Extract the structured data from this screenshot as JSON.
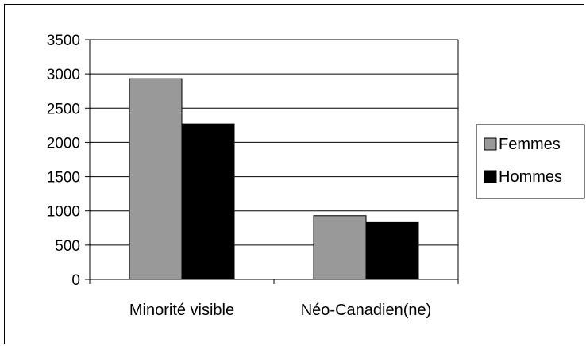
{
  "chart_data": {
    "type": "bar",
    "title": "",
    "xlabel": "",
    "ylabel": "",
    "categories": [
      "Minorité visible",
      "Néo-Canadien(ne)"
    ],
    "series": [
      {
        "name": "Femmes",
        "values": [
          2930,
          930
        ],
        "color": "#999999"
      },
      {
        "name": "Hommes",
        "values": [
          2270,
          830
        ],
        "color": "#000000"
      }
    ],
    "ylim": [
      0,
      3500
    ],
    "yticks": [
      0,
      500,
      1000,
      1500,
      2000,
      2500,
      3000,
      3500
    ],
    "grid": true,
    "legend_position": "right"
  }
}
